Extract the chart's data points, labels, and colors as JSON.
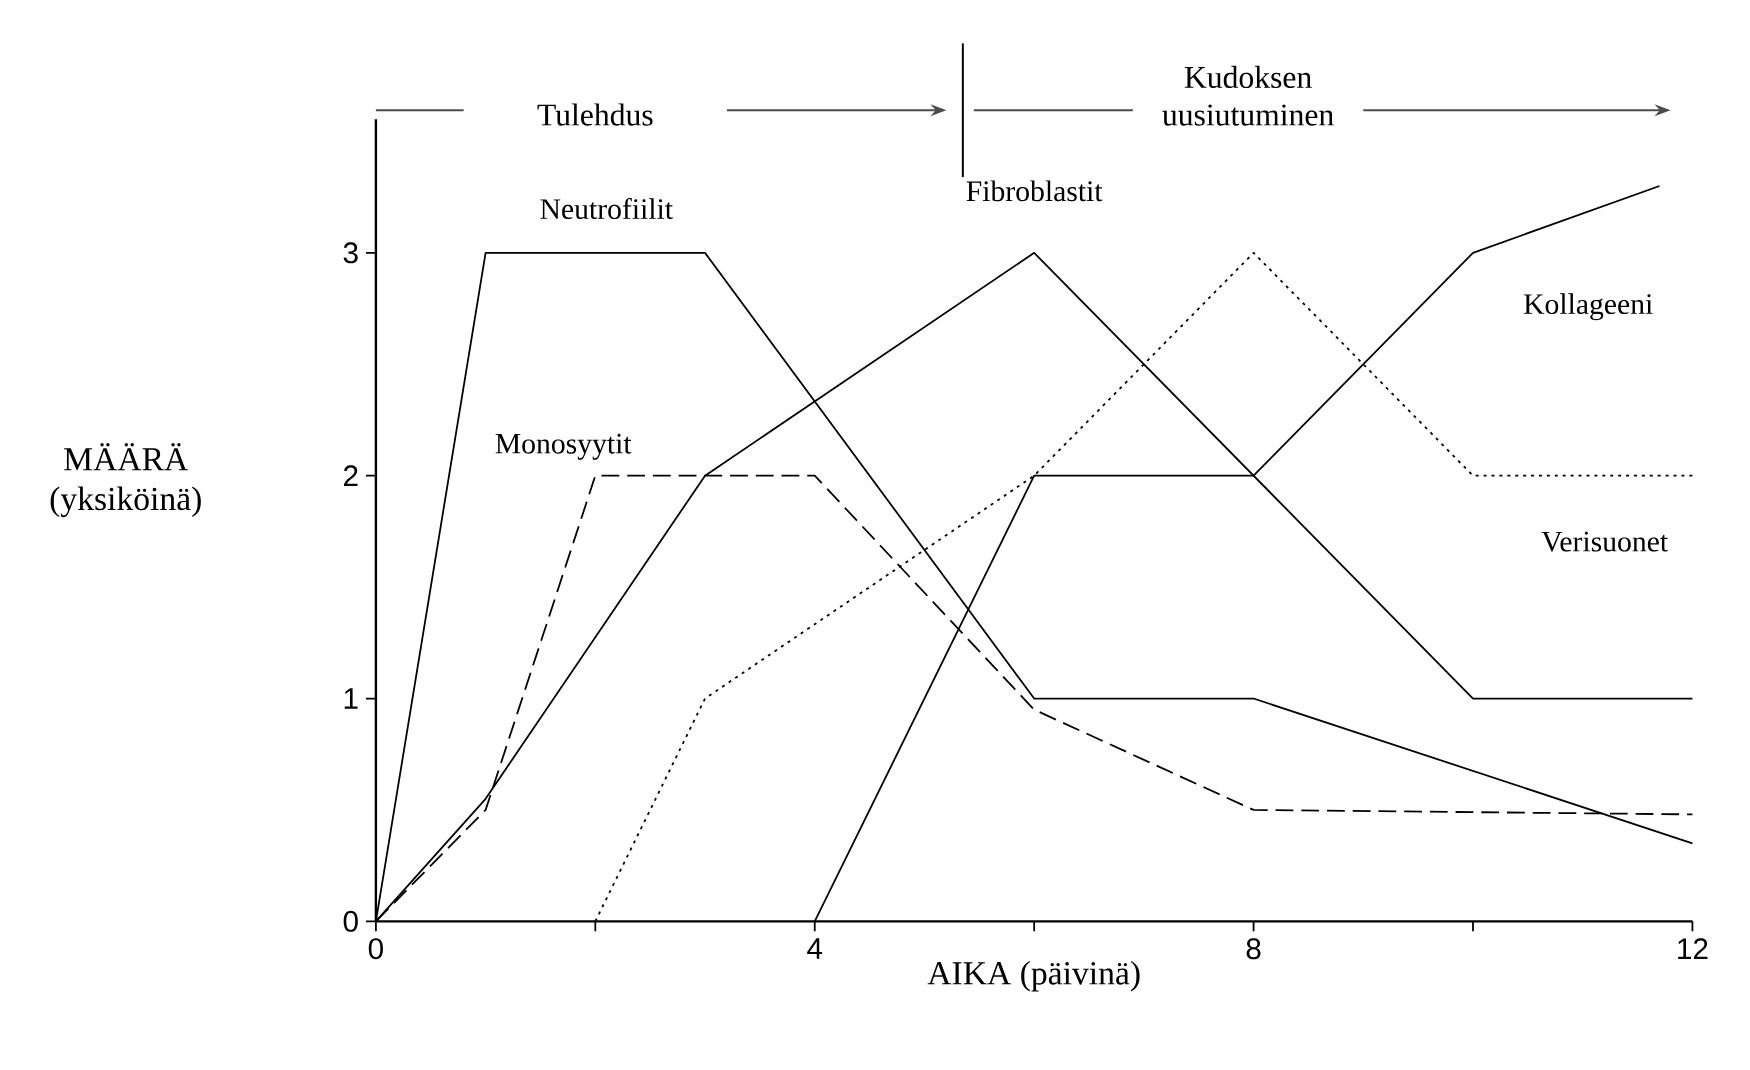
{
  "chart_data": {
    "type": "line",
    "xlabel": "AIKA (päivinä)",
    "ylabel": "MÄÄRÄ (yksiköinä)",
    "annotations": [
      "Tulehdus",
      "Kudoksen uusiutuminen"
    ],
    "xlim": [
      0,
      12
    ],
    "ylim": [
      0,
      3.6
    ],
    "xticks": [
      0,
      {
        "value": 2,
        "label": null
      },
      4,
      {
        "value": 6,
        "label": null
      },
      8,
      {
        "value": 10,
        "label": null
      },
      12
    ],
    "yticks": [
      0,
      1,
      2,
      3
    ],
    "grid": false,
    "legend": false,
    "marker": "none",
    "series": [
      {
        "name": "Neutrofiilit",
        "color": "#000000",
        "line_style": "solid",
        "x": [
          0,
          1,
          3,
          6,
          8,
          12
        ],
        "values": [
          0,
          3,
          3,
          1,
          1,
          0.35
        ]
      },
      {
        "name": "Monosyytit",
        "color": "#000000",
        "line_style": "dashed",
        "x": [
          0,
          1,
          2,
          4,
          6,
          8,
          12
        ],
        "values": [
          0,
          0.5,
          2,
          2,
          0.95,
          0.5,
          0.48
        ]
      },
      {
        "name": "Fibroblastit",
        "color": "#000000",
        "line_style": "solid",
        "x": [
          0,
          1,
          3,
          6,
          8,
          10,
          12
        ],
        "values": [
          0,
          0.55,
          2,
          3,
          2,
          1,
          1
        ]
      },
      {
        "name": "Kollageeni",
        "color": "#000000",
        "line_style": "solid",
        "x": [
          4,
          6,
          8,
          10,
          11.7
        ],
        "values": [
          0,
          2,
          2,
          3,
          3.3
        ]
      },
      {
        "name": "Verisuonet",
        "color": "#000000",
        "line_style": "dotted",
        "x": [
          2,
          3,
          6,
          8,
          10,
          12
        ],
        "values": [
          0,
          1,
          2,
          3,
          2,
          2
        ]
      }
    ]
  }
}
